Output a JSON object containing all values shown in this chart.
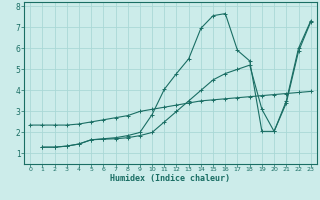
{
  "xlabel": "Humidex (Indice chaleur)",
  "bg_color": "#ccecea",
  "grid_color": "#aad8d6",
  "line_color": "#1a6e64",
  "xlim": [
    -0.5,
    23.5
  ],
  "ylim": [
    0.5,
    8.2
  ],
  "xticks": [
    0,
    1,
    2,
    3,
    4,
    5,
    6,
    7,
    8,
    9,
    10,
    11,
    12,
    13,
    14,
    15,
    16,
    17,
    18,
    19,
    20,
    21,
    22,
    23
  ],
  "yticks": [
    1,
    2,
    3,
    4,
    5,
    6,
    7,
    8
  ],
  "line1_x": [
    0,
    1,
    2,
    3,
    4,
    5,
    6,
    7,
    8,
    9,
    10,
    11,
    12,
    13,
    14,
    15,
    16,
    17,
    18,
    19,
    20,
    21,
    22,
    23
  ],
  "line1_y": [
    2.35,
    2.35,
    2.35,
    2.35,
    2.4,
    2.5,
    2.6,
    2.7,
    2.8,
    3.0,
    3.1,
    3.2,
    3.3,
    3.4,
    3.5,
    3.55,
    3.6,
    3.65,
    3.7,
    3.75,
    3.8,
    3.85,
    3.9,
    3.95
  ],
  "line2_x": [
    1,
    2,
    3,
    4,
    5,
    6,
    7,
    8,
    9,
    10,
    11,
    12,
    13,
    14,
    15,
    16,
    17,
    18,
    19,
    20,
    21,
    22,
    23
  ],
  "line2_y": [
    1.3,
    1.3,
    1.35,
    1.45,
    1.65,
    1.7,
    1.75,
    1.85,
    2.0,
    2.85,
    4.05,
    4.8,
    5.5,
    6.95,
    7.55,
    7.65,
    5.9,
    5.4,
    2.05,
    2.05,
    3.5,
    6.0,
    7.3
  ],
  "line3_x": [
    1,
    2,
    3,
    4,
    5,
    6,
    7,
    8,
    9,
    10,
    11,
    12,
    13,
    14,
    15,
    16,
    17,
    18,
    19,
    20,
    21,
    22,
    23
  ],
  "line3_y": [
    1.3,
    1.3,
    1.35,
    1.45,
    1.65,
    1.68,
    1.7,
    1.75,
    1.85,
    2.0,
    2.5,
    3.0,
    3.5,
    4.0,
    4.5,
    4.8,
    5.0,
    5.2,
    3.1,
    2.05,
    3.4,
    5.85,
    7.25
  ]
}
